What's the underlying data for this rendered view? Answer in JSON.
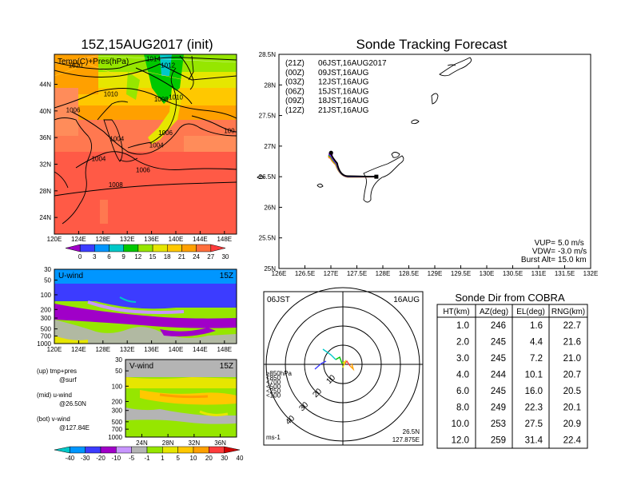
{
  "map_panel": {
    "title": "15Z,15AUG2017 (init)",
    "label": "Temp(C)+Pres(hPa)",
    "lat_labels": [
      "44N",
      "40N",
      "36N",
      "32N",
      "28N",
      "24N"
    ],
    "lon_labels": [
      "120E",
      "124E",
      "128E",
      "132E",
      "136E",
      "140E",
      "144E",
      "148E"
    ],
    "isobar_labels": [
      {
        "text": "1010",
        "lon": 123.5,
        "lat": 46.5
      },
      {
        "text": "1012",
        "lon": 138.7,
        "lat": 46.5
      },
      {
        "text": "1014",
        "lon": 136.3,
        "lat": 47.5
      },
      {
        "text": "1010",
        "lon": 129.3,
        "lat": 42.2
      },
      {
        "text": "1008",
        "lon": 137.6,
        "lat": 41.4
      },
      {
        "text": "1010",
        "lon": 140.0,
        "lat": 41.7
      },
      {
        "text": "1006",
        "lon": 123.1,
        "lat": 39.8
      },
      {
        "text": "1006",
        "lon": 138.3,
        "lat": 36.4
      },
      {
        "text": "100",
        "lon": 148.8,
        "lat": 36.7
      },
      {
        "text": "1004",
        "lon": 130.3,
        "lat": 35.5
      },
      {
        "text": "1004",
        "lon": 136.8,
        "lat": 34.5
      },
      {
        "text": "1004",
        "lon": 127.3,
        "lat": 32.5
      },
      {
        "text": "1006",
        "lon": 134.6,
        "lat": 30.8
      },
      {
        "text": "1008",
        "lon": 130.1,
        "lat": 28.6
      }
    ],
    "colorbar_labels": [
      "0",
      "3",
      "6",
      "9",
      "12",
      "15",
      "18",
      "21",
      "24",
      "27",
      "30"
    ],
    "colorbar_colors": [
      "#a000c8",
      "#3c3cff",
      "#0096ff",
      "#00c8c8",
      "#00c800",
      "#96e600",
      "#e6e600",
      "#ffc800",
      "#ffa000",
      "#ff6e3c",
      "#ff3c3c"
    ]
  },
  "u_panel": {
    "label": "U-wind",
    "time": "15Z",
    "y_labels": [
      "30",
      "50",
      "100",
      "200",
      "300",
      "500",
      "700",
      "1000"
    ],
    "x_labels": [
      "120E",
      "124E",
      "128E",
      "132E",
      "136E",
      "140E",
      "144E",
      "148E"
    ]
  },
  "v_panel": {
    "label": "V-wind",
    "time": "15Z",
    "y_labels": [
      "30",
      "50",
      "100",
      "200",
      "300",
      "500",
      "700",
      "1000"
    ],
    "x_labels": [
      "24N",
      "28N",
      "32N",
      "36N"
    ]
  },
  "notes": [
    {
      "line1": "(up) tmp+pres",
      "line2": "@surf"
    },
    {
      "line1": "(mid) u-wind",
      "line2": "@26.50N"
    },
    {
      "line1": "(bot) v-wind",
      "line2": "@127.84E"
    }
  ],
  "wind_colorbar": {
    "labels": [
      "-40",
      "-30",
      "-20",
      "-10",
      "-5",
      "-1",
      "1",
      "5",
      "10",
      "20",
      "30",
      "40"
    ],
    "colors": [
      "#00c8c8",
      "#0096ff",
      "#3c3cff",
      "#a000c8",
      "#c896ff",
      "#b4b4b4",
      "#96e600",
      "#e6e600",
      "#ffc800",
      "#ffa000",
      "#ff3c3c",
      "#d20000"
    ]
  },
  "track_panel": {
    "title": "Sonde Tracking Forecast",
    "legend": [
      {
        "run": "(21Z)",
        "time": "06JST,16AUG2017",
        "color": "#000000"
      },
      {
        "run": "(00Z)",
        "time": "09JST,16AUG",
        "color": "#a000c8"
      },
      {
        "run": "(03Z)",
        "time": "12JST,16AUG",
        "color": "#3c3cff"
      },
      {
        "run": "(06Z)",
        "time": "15JST,16AUG",
        "color": "#00c800"
      },
      {
        "run": "(09Z)",
        "time": "18JST,16AUG",
        "color": "#ffa000"
      },
      {
        "run": "(12Z)",
        "time": "21JST,16AUG",
        "color": "#ff6e3c"
      }
    ],
    "lat_labels": [
      "28.5N",
      "28N",
      "27.5N",
      "27N",
      "26.5N",
      "26N",
      "25.5N",
      "25N"
    ],
    "lon_labels": [
      "126E",
      "126.5E",
      "127E",
      "127.5E",
      "128E",
      "128.5E",
      "129E",
      "129.5E",
      "130E",
      "130.5E",
      "131E",
      "131.5E",
      "132E"
    ],
    "params": [
      {
        "k": "VUP=",
        "v": "5.0 m/s"
      },
      {
        "k": "VDW=",
        "v": "-3.0 m/s"
      },
      {
        "k": "Burst Alt=",
        "v": "15.0 km"
      }
    ]
  },
  "polar_panel": {
    "time_left": "06JST",
    "date_right": "16AUG",
    "ring_labels": [
      "10",
      "20",
      "30",
      "40"
    ],
    "level_legend": [
      {
        "text": "≥850hPa",
        "color": "#ff3c3c"
      },
      {
        "text": "<850",
        "color": "#ffa000"
      },
      {
        "text": "<700",
        "color": "#e6e600"
      },
      {
        "text": "<500",
        "color": "#00c800"
      },
      {
        "text": "<250",
        "color": "#00c8c8"
      },
      {
        "text": "<100",
        "color": "#3c3cff"
      }
    ],
    "units": "ms-1",
    "loc_lat": "26.5N",
    "loc_lon": "127.875E"
  },
  "table": {
    "title": "Sonde Dir from COBRA",
    "headers": [
      "HT(km)",
      "AZ(deg)",
      "EL(deg)",
      "RNG(km)"
    ],
    "rows": [
      [
        "1.0",
        "246",
        "1.6",
        "22.7"
      ],
      [
        "2.0",
        "245",
        "4.4",
        "21.6"
      ],
      [
        "3.0",
        "245",
        "7.2",
        "21.0"
      ],
      [
        "4.0",
        "244",
        "10.1",
        "20.7"
      ],
      [
        "6.0",
        "245",
        "16.0",
        "20.5"
      ],
      [
        "8.0",
        "249",
        "22.3",
        "20.1"
      ],
      [
        "10.0",
        "253",
        "27.5",
        "20.9"
      ],
      [
        "12.0",
        "259",
        "31.4",
        "22.4"
      ]
    ]
  }
}
